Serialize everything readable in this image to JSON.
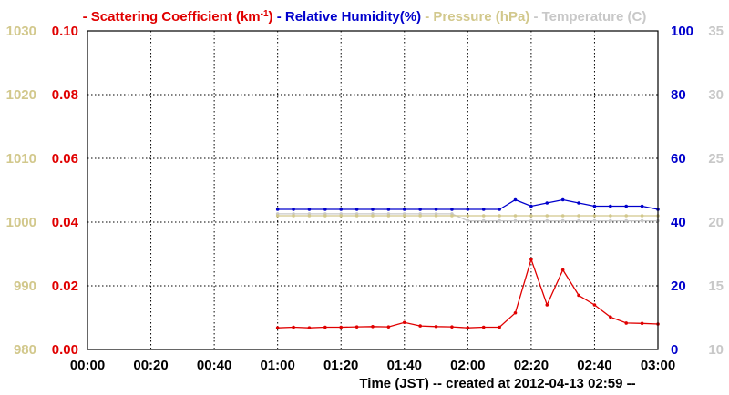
{
  "chart_data": {
    "type": "line",
    "title": {
      "parts": [
        {
          "text": "- Scattering Coefficient (km",
          "color": "#e00000"
        },
        {
          "text": "-1",
          "color": "#e00000",
          "superscript": true
        },
        {
          "text": ")",
          "color": "#e00000"
        },
        {
          "text": " - Relative Humidity(%)",
          "color": "#0000cc"
        },
        {
          "text": " - Pressure (hPa)",
          "color": "#d2c88c"
        },
        {
          "text": " - Temperature (C)",
          "color": "#c8c8c8"
        }
      ]
    },
    "xlabel": "Time (JST)  -- created at 2012-04-13 02:59 --",
    "x_ticks": [
      "00:00",
      "00:20",
      "00:40",
      "01:00",
      "01:20",
      "01:40",
      "02:00",
      "02:20",
      "02:40",
      "03:00"
    ],
    "x_range_minutes": [
      0,
      180
    ],
    "grid": true,
    "axes": {
      "pressure": {
        "side": "left-outer",
        "color": "#d2c88c",
        "range": [
          980,
          1030
        ],
        "ticks": [
          "980",
          "990",
          "1000",
          "1010",
          "1020",
          "1030"
        ]
      },
      "scattering": {
        "side": "left-inner",
        "color": "#e00000",
        "range": [
          0,
          0.1
        ],
        "ticks": [
          "0.00",
          "0.02",
          "0.04",
          "0.06",
          "0.08",
          "0.10"
        ]
      },
      "humidity": {
        "side": "right-inner",
        "color": "#0000cc",
        "range": [
          0,
          100
        ],
        "ticks": [
          "0",
          "20",
          "40",
          "60",
          "80",
          "100"
        ]
      },
      "temperature": {
        "side": "right-outer",
        "color": "#c8c8c8",
        "range": [
          10,
          35
        ],
        "ticks": [
          "10",
          "15",
          "20",
          "25",
          "30",
          "35"
        ]
      }
    },
    "series": [
      {
        "name": "Scattering Coefficient",
        "axis": "scattering",
        "color": "#e00000",
        "x_minutes": [
          60,
          65,
          70,
          75,
          80,
          85,
          90,
          95,
          100,
          105,
          110,
          115,
          120,
          125,
          130,
          135,
          140,
          145,
          150,
          155,
          160,
          165,
          170,
          175,
          180
        ],
        "values": [
          0.0068,
          0.007,
          0.0068,
          0.007,
          0.007,
          0.0071,
          0.0072,
          0.0071,
          0.0085,
          0.0074,
          0.0072,
          0.0071,
          0.0068,
          0.007,
          0.007,
          0.0115,
          0.0283,
          0.014,
          0.025,
          0.017,
          0.014,
          0.0102,
          0.0083,
          0.0082,
          0.008
        ]
      },
      {
        "name": "Relative Humidity",
        "axis": "humidity",
        "color": "#0000cc",
        "x_minutes": [
          60,
          65,
          70,
          75,
          80,
          85,
          90,
          95,
          100,
          105,
          110,
          115,
          120,
          125,
          130,
          135,
          140,
          145,
          150,
          155,
          160,
          165,
          170,
          175,
          180
        ],
        "values": [
          44.0,
          44.0,
          44.0,
          44.0,
          44.0,
          44.0,
          44.0,
          44.0,
          44.0,
          44.0,
          44.0,
          44.0,
          44.0,
          44.0,
          44.0,
          47.0,
          45.0,
          46.0,
          47.0,
          46.0,
          45.0,
          45.0,
          45.0,
          45.0,
          44.0
        ]
      },
      {
        "name": "Pressure",
        "axis": "pressure",
        "color": "#d2c88c",
        "x_minutes": [
          60,
          65,
          70,
          75,
          80,
          85,
          90,
          95,
          100,
          105,
          110,
          115,
          120,
          125,
          130,
          135,
          140,
          145,
          150,
          155,
          160,
          165,
          170,
          175,
          180
        ],
        "values": [
          1001.0,
          1001.0,
          1001.0,
          1001.0,
          1001.0,
          1001.0,
          1001.0,
          1001.0,
          1001.0,
          1001.0,
          1001.0,
          1001.0,
          1001.0,
          1001.0,
          1001.0,
          1001.0,
          1001.0,
          1001.0,
          1001.0,
          1001.0,
          1001.0,
          1001.0,
          1001.0,
          1001.0,
          1001.0
        ]
      },
      {
        "name": "Temperature",
        "axis": "temperature",
        "color": "#c8c8c8",
        "x_minutes": [
          60,
          65,
          70,
          75,
          80,
          85,
          90,
          95,
          100,
          105,
          110,
          115,
          120,
          125,
          130,
          135,
          140,
          145,
          150,
          155,
          160,
          165,
          170,
          175,
          180
        ],
        "values": [
          20.65,
          20.65,
          20.65,
          20.65,
          20.65,
          20.65,
          20.65,
          20.65,
          20.65,
          20.65,
          20.65,
          20.65,
          20.1,
          20.1,
          20.1,
          20.1,
          20.1,
          20.1,
          20.1,
          20.1,
          20.1,
          20.1,
          20.1,
          20.1,
          20.1
        ]
      }
    ]
  }
}
